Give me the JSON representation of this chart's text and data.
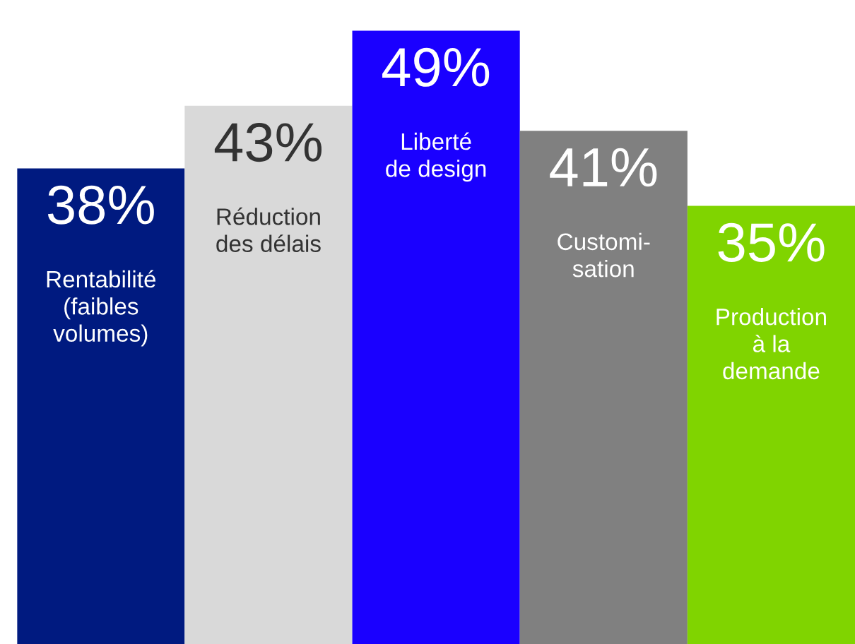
{
  "chart_data": {
    "type": "bar",
    "categories": [
      "Rentabilité\n(faibles\nvolumes)",
      "Réduction\ndes délais",
      "Liberté\nde design",
      "Customi-\nsation",
      "Production\nà la\ndemande"
    ],
    "values": [
      38,
      43,
      49,
      41,
      35
    ],
    "value_labels": [
      "38%",
      "43%",
      "49%",
      "41%",
      "35%"
    ],
    "colors": [
      "#001a80",
      "#d9d9d9",
      "#1a00ff",
      "#808080",
      "#80d400"
    ],
    "legend": false
  }
}
